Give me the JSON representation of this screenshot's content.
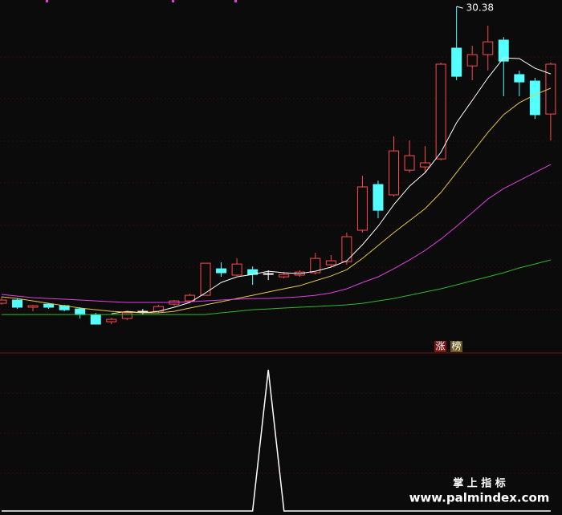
{
  "chart_data": {
    "type": "candlestick",
    "ylim": [
      10.08,
      30.76
    ],
    "up_color": "#ff4a4a",
    "down_color": "#54ffff",
    "doji_color": "#ffffff",
    "open": [
      12.99,
      13.18,
      12.76,
      12.94,
      12.85,
      12.66,
      12.33,
      11.91,
      12.1,
      12.52,
      12.52,
      12.94,
      13.13,
      13.46,
      15.01,
      14.64,
      14.96,
      14.73,
      14.54,
      14.64,
      14.78,
      15.25,
      15.43,
      17.27,
      19.95,
      19.34,
      20.79,
      20.98,
      21.45,
      27.94,
      26.9,
      27.56,
      28.41,
      26.39,
      26.01,
      24.08
    ],
    "high": [
      13.37,
      13.27,
      12.9,
      12.99,
      12.9,
      12.76,
      12.43,
      12.14,
      12.52,
      12.66,
      12.9,
      13.18,
      13.55,
      15.34,
      15.39,
      15.62,
      15.15,
      14.92,
      14.82,
      14.92,
      15.95,
      15.81,
      17.13,
      20.46,
      20.18,
      22.77,
      22.53,
      22.2,
      27.09,
      30.38,
      28.08,
      29.25,
      28.59,
      26.62,
      26.2,
      27.09
    ],
    "low": [
      12.9,
      12.66,
      12.52,
      12.66,
      12.52,
      12.1,
      11.77,
      11.77,
      12.0,
      12.33,
      12.43,
      12.85,
      13.04,
      13.46,
      14.54,
      14.59,
      14.07,
      14.35,
      14.45,
      14.54,
      14.68,
      15.11,
      15.25,
      17.13,
      17.97,
      19.24,
      20.65,
      20.65,
      21.36,
      26.06,
      26.06,
      26.62,
      25.12,
      25.12,
      23.8,
      22.53
    ],
    "close": [
      13.18,
      12.76,
      12.85,
      12.76,
      12.61,
      12.33,
      11.77,
      12.05,
      12.43,
      12.52,
      12.8,
      13.13,
      13.46,
      15.34,
      14.78,
      15.29,
      14.68,
      14.73,
      14.68,
      14.82,
      15.62,
      15.48,
      16.89,
      19.81,
      18.44,
      21.92,
      21.64,
      21.22,
      27.0,
      26.29,
      27.56,
      28.31,
      27.18,
      25.96,
      24.04,
      27.0
    ],
    "high_label_index": 29,
    "moving_averages": [
      {
        "color": "#ffffff",
        "values": [
          null,
          null,
          null,
          null,
          null,
          null,
          null,
          12.38,
          12.52,
          12.43,
          12.52,
          12.76,
          13.04,
          13.6,
          14.21,
          14.54,
          14.68,
          14.87,
          14.78,
          14.73,
          14.87,
          15.11,
          15.48,
          16.42,
          17.5,
          18.77,
          19.85,
          20.65,
          21.83,
          23.57,
          24.88,
          26.2,
          27.37,
          27.33,
          26.76,
          26.43
        ]
      },
      {
        "color": "#e6c84a",
        "values": [
          13.37,
          13.27,
          13.13,
          12.99,
          12.85,
          12.71,
          12.61,
          12.52,
          12.47,
          12.43,
          12.43,
          12.52,
          12.71,
          12.9,
          13.08,
          13.27,
          13.46,
          13.65,
          13.84,
          14.02,
          14.31,
          14.59,
          14.96,
          15.62,
          16.37,
          17.13,
          17.83,
          18.54,
          19.48,
          20.65,
          21.83,
          23.0,
          24.04,
          24.74,
          25.21,
          25.59
        ]
      },
      {
        "color": "#e040e0",
        "values": [
          13.51,
          13.41,
          13.32,
          13.27,
          13.23,
          13.18,
          13.13,
          13.08,
          13.04,
          13.04,
          13.04,
          13.04,
          13.08,
          13.13,
          13.18,
          13.23,
          13.27,
          13.27,
          13.32,
          13.37,
          13.46,
          13.6,
          13.84,
          14.21,
          14.54,
          15.01,
          15.53,
          16.09,
          16.75,
          17.5,
          18.3,
          19.1,
          19.71,
          20.18,
          20.65,
          21.12
        ]
      },
      {
        "color": "#2db82d",
        "values": [
          12.33,
          12.33,
          12.33,
          12.33,
          12.33,
          12.33,
          12.33,
          12.33,
          12.33,
          12.33,
          12.33,
          12.33,
          12.33,
          12.33,
          12.43,
          12.52,
          12.61,
          12.66,
          12.71,
          12.76,
          12.8,
          12.85,
          12.9,
          12.99,
          13.13,
          13.27,
          13.46,
          13.65,
          13.84,
          14.07,
          14.31,
          14.54,
          14.78,
          15.06,
          15.29,
          15.53
        ]
      }
    ],
    "indicator": {
      "color": "#ffffff",
      "values": [
        0,
        0,
        0,
        0,
        0,
        0,
        0,
        0,
        0,
        0,
        0,
        0,
        0,
        0,
        0,
        0,
        0,
        1,
        0,
        0,
        0,
        0,
        0,
        0,
        0,
        0,
        0,
        0,
        0,
        0,
        0,
        0,
        0,
        0,
        0,
        0
      ]
    },
    "badges": [
      "涨",
      "榜"
    ],
    "watermark": {
      "title": "掌 上 指 标",
      "url": "www.palmindex.com"
    }
  }
}
